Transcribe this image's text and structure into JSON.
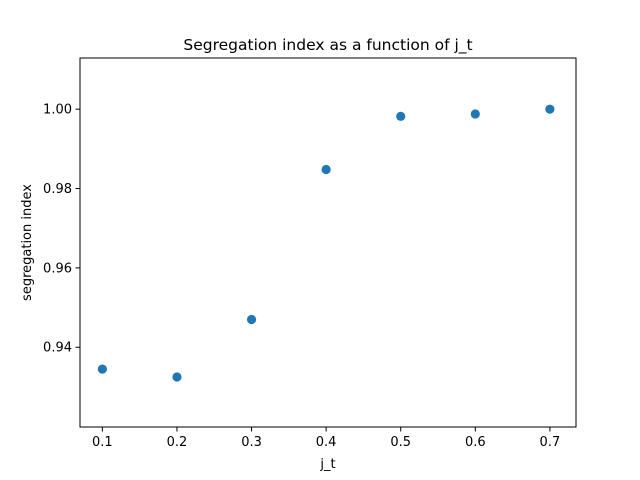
{
  "chart_data": {
    "type": "scatter",
    "title": "Segregation index as a function of j_t",
    "xlabel": "j_t",
    "ylabel": "segregation index",
    "x": [
      0.1,
      0.2,
      0.3,
      0.4,
      0.5,
      0.6,
      0.7
    ],
    "y": [
      0.9345,
      0.9325,
      0.947,
      0.9848,
      0.9982,
      0.9988,
      1.0
    ],
    "xlim": [
      0.07,
      0.735
    ],
    "ylim": [
      0.9199,
      1.0129
    ],
    "xticks": [
      0.1,
      0.2,
      0.3,
      0.4,
      0.5,
      0.6,
      0.7
    ],
    "xtick_labels": [
      "0.1",
      "0.2",
      "0.3",
      "0.4",
      "0.5",
      "0.6",
      "0.7"
    ],
    "yticks": [
      0.94,
      0.96,
      0.98,
      1.0
    ],
    "ytick_labels": [
      "0.94",
      "0.96",
      "0.98",
      "1.00"
    ],
    "grid": false,
    "marker_color": "#1f77b4"
  }
}
